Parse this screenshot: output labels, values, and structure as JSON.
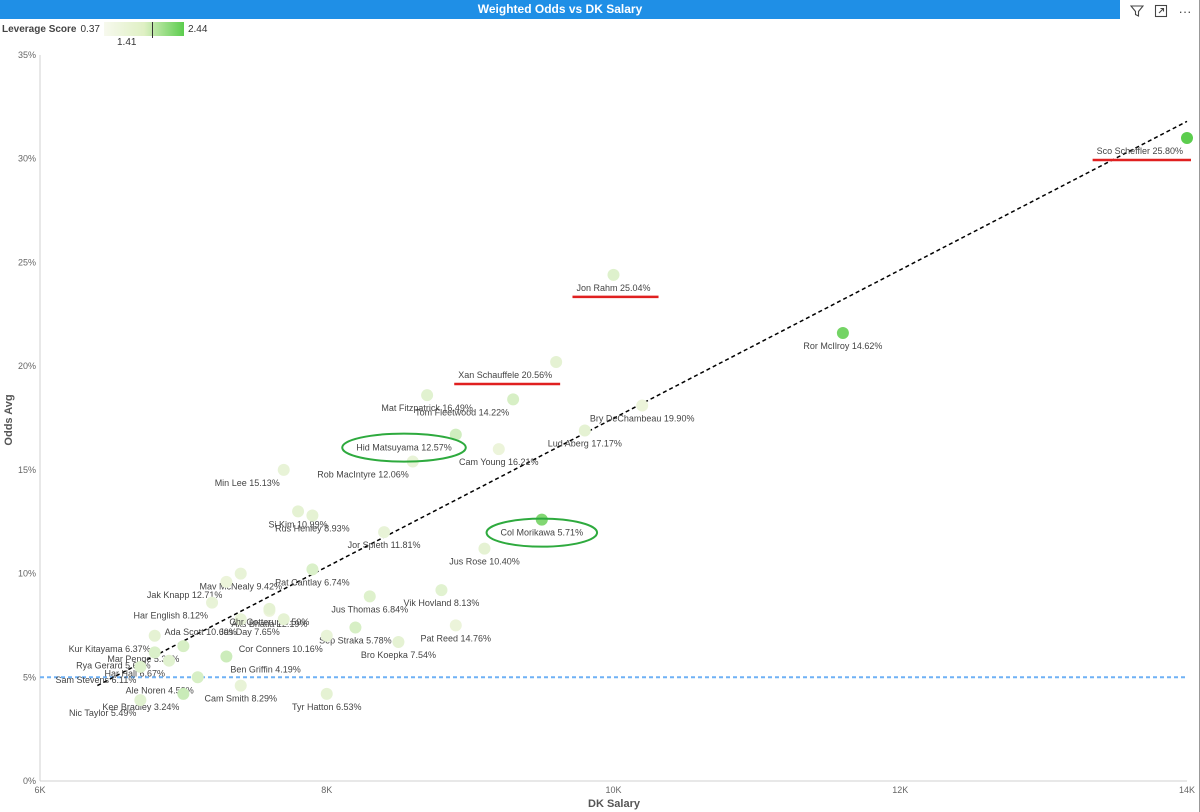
{
  "visual_title": "Weighted Odds vs DK Salary",
  "toolbar": {
    "filter_icon": "filter-icon",
    "focus_icon": "focus-mode-icon",
    "more_icon": "more-options-icon",
    "more_glyph": "···"
  },
  "legend": {
    "label": "Leverage Score",
    "min": "0.37",
    "max": "2.44",
    "marker": "1.41"
  },
  "chart_data": {
    "type": "scatter",
    "xlabel": "DK Salary",
    "ylabel": "Odds Avg",
    "xlim": [
      6000,
      14000
    ],
    "ylim": [
      0,
      35
    ],
    "xticks": [
      {
        "v": 6000,
        "label": "6K"
      },
      {
        "v": 8000,
        "label": "8K"
      },
      {
        "v": 10000,
        "label": "10K"
      },
      {
        "v": 12000,
        "label": "12K"
      },
      {
        "v": 14000,
        "label": "14K"
      }
    ],
    "yticks": [
      {
        "v": 0,
        "label": "0%"
      },
      {
        "v": 5,
        "label": "5%"
      },
      {
        "v": 10,
        "label": "10%"
      },
      {
        "v": 15,
        "label": "15%"
      },
      {
        "v": 20,
        "label": "20%"
      },
      {
        "v": 25,
        "label": "25%"
      },
      {
        "v": 30,
        "label": "30%"
      },
      {
        "v": 35,
        "label": "35%"
      }
    ],
    "grid": false,
    "reference_line_y": 5,
    "trendline": {
      "x": [
        6400,
        14000
      ],
      "y": [
        4.6,
        31.8
      ]
    },
    "points": [
      {
        "label": "Sco Scheffler 25.80%",
        "x": 14000,
        "y": 31.0,
        "score": 2.44,
        "anchor": "end"
      },
      {
        "label": "Jon Rahm 25.04%",
        "x": 10000,
        "y": 24.4,
        "score": 0.6,
        "anchor": "middle"
      },
      {
        "label": "Ror McIlroy 14.62%",
        "x": 11600,
        "y": 21.6,
        "score": 2.1,
        "anchor": "middle"
      },
      {
        "label": "Xan Schauffele 20.56%",
        "x": 9600,
        "y": 20.2,
        "score": 0.5,
        "anchor": "end"
      },
      {
        "label": "Tom Fleetwood 14.22%",
        "x": 9300,
        "y": 18.4,
        "score": 0.7,
        "anchor": "end"
      },
      {
        "label": "Mat Fitzpatrick 16.49%",
        "x": 8700,
        "y": 18.6,
        "score": 0.55,
        "anchor": "middle"
      },
      {
        "label": "Bry DeChambeau 19.90%",
        "x": 10200,
        "y": 18.1,
        "score": 0.4,
        "anchor": "middle"
      },
      {
        "label": "Lud Aberg 17.17%",
        "x": 9800,
        "y": 16.9,
        "score": 0.5,
        "anchor": "middle"
      },
      {
        "label": "Hid Matsuyama 12.57%",
        "x": 8900,
        "y": 16.7,
        "score": 0.8,
        "anchor": "end"
      },
      {
        "label": "Cam Young 16.21%",
        "x": 9200,
        "y": 16.0,
        "score": 0.4,
        "anchor": "middle"
      },
      {
        "label": "Rob MacIntyre 12.06%",
        "x": 8600,
        "y": 15.4,
        "score": 0.45,
        "anchor": "end"
      },
      {
        "label": "Min Lee 15.13%",
        "x": 7700,
        "y": 15.0,
        "score": 0.45,
        "anchor": "end"
      },
      {
        "label": "Si Kim 10.99%",
        "x": 7800,
        "y": 13.0,
        "score": 0.5,
        "anchor": "middle"
      },
      {
        "label": "Col Morikawa 5.71%",
        "x": 9500,
        "y": 12.6,
        "score": 1.9,
        "anchor": "middle"
      },
      {
        "label": "Rus Henley 8.93%",
        "x": 7900,
        "y": 12.8,
        "score": 0.5,
        "anchor": "middle"
      },
      {
        "label": "Jor Spieth 11.81%",
        "x": 8400,
        "y": 12.0,
        "score": 0.45,
        "anchor": "middle"
      },
      {
        "label": "Jus Rose 10.40%",
        "x": 9100,
        "y": 11.2,
        "score": 0.5,
        "anchor": "middle"
      },
      {
        "label": "Mav McNealy 9.42%",
        "x": 7400,
        "y": 10.0,
        "score": 0.45,
        "anchor": "middle"
      },
      {
        "label": "Pat Cantlay 6.74%",
        "x": 7900,
        "y": 10.2,
        "score": 0.65,
        "anchor": "middle"
      },
      {
        "label": "Jak Knapp 12.71%",
        "x": 7300,
        "y": 9.6,
        "score": 0.4,
        "anchor": "end"
      },
      {
        "label": "Jus Thomas 6.84%",
        "x": 8300,
        "y": 8.9,
        "score": 0.6,
        "anchor": "middle"
      },
      {
        "label": "Vik Hovland 8.13%",
        "x": 8800,
        "y": 9.2,
        "score": 0.55,
        "anchor": "middle"
      },
      {
        "label": "Har English 8.12%",
        "x": 7200,
        "y": 8.6,
        "score": 0.45,
        "anchor": "end"
      },
      {
        "label": "Aks Bhatia 12.19%",
        "x": 7600,
        "y": 8.2,
        "score": 0.4,
        "anchor": "middle"
      },
      {
        "label": "Ada Scott 10.60%",
        "x": 7400,
        "y": 7.8,
        "score": 0.45,
        "anchor": "end"
      },
      {
        "label": "Chr Gotterup 9.50%",
        "x": 7600,
        "y": 8.3,
        "score": 0.5,
        "anchor": "middle"
      },
      {
        "label": "Jas Day 7.65%",
        "x": 7700,
        "y": 7.8,
        "score": 0.5,
        "anchor": "end"
      },
      {
        "label": "Sep Straka 5.78%",
        "x": 8200,
        "y": 7.4,
        "score": 0.7,
        "anchor": "middle"
      },
      {
        "label": "Pat Reed 14.76%",
        "x": 8900,
        "y": 7.5,
        "score": 0.4,
        "anchor": "middle"
      },
      {
        "label": "Kur Kitayama 6.37%",
        "x": 6800,
        "y": 7.0,
        "score": 0.5,
        "anchor": "end"
      },
      {
        "label": "Cor Conners 10.16%",
        "x": 8000,
        "y": 7.0,
        "score": 0.45,
        "anchor": "end"
      },
      {
        "label": "Bro Koepka 7.54%",
        "x": 8500,
        "y": 6.7,
        "score": 0.5,
        "anchor": "middle"
      },
      {
        "label": "Mar Penge 5.34%",
        "x": 7000,
        "y": 6.5,
        "score": 0.7,
        "anchor": "end"
      },
      {
        "label": "Rya Gerard 5.67%",
        "x": 6800,
        "y": 6.2,
        "score": 0.65,
        "anchor": "end"
      },
      {
        "label": "Ben Griffin 4.19%",
        "x": 7300,
        "y": 6.0,
        "score": 0.85,
        "anchor": "start"
      },
      {
        "label": "Har Hall 6.67%",
        "x": 6900,
        "y": 5.8,
        "score": 0.55,
        "anchor": "end"
      },
      {
        "label": "Sam Stevens 6.11%",
        "x": 6700,
        "y": 5.5,
        "score": 0.6,
        "anchor": "end"
      },
      {
        "label": "Ale Noren 4.59%",
        "x": 7100,
        "y": 5.0,
        "score": 0.7,
        "anchor": "end"
      },
      {
        "label": "Cam Smith 8.29%",
        "x": 7400,
        "y": 4.6,
        "score": 0.45,
        "anchor": "middle"
      },
      {
        "label": "Kee Bradley 3.24%",
        "x": 7000,
        "y": 4.2,
        "score": 0.9,
        "anchor": "end"
      },
      {
        "label": "Tyr Hatton 6.53%",
        "x": 8000,
        "y": 4.2,
        "score": 0.5,
        "anchor": "middle"
      },
      {
        "label": "Nic Taylor 5.49%",
        "x": 6700,
        "y": 3.9,
        "score": 0.55,
        "anchor": "end"
      }
    ],
    "annotations": {
      "underlined": [
        "Sco Scheffler 25.80%",
        "Jon Rahm 25.04%",
        "Xan Schauffele 20.56%"
      ],
      "circled": [
        "Hid Matsuyama 12.57%",
        "Col Morikawa 5.71%"
      ]
    }
  },
  "colors": {
    "title_bar": "#1f8fe6",
    "trendline": "#000000",
    "reference_line": "#6fb1f5",
    "underline": "#e02020",
    "circle": "#2eaa3e",
    "low_score": "#eef5dc",
    "high_score": "#5ccd4e"
  }
}
